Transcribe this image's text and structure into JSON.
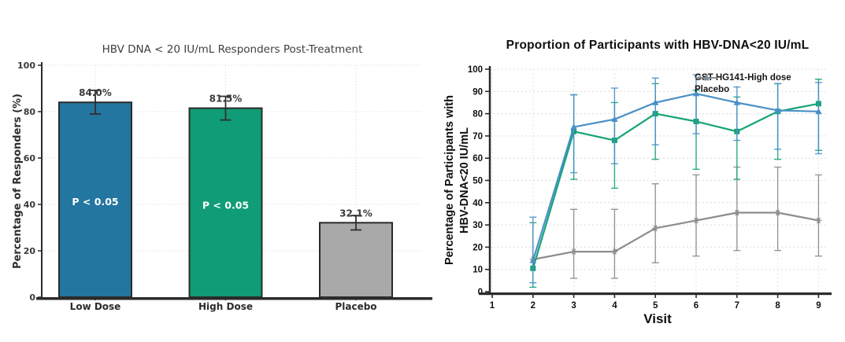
{
  "page": {
    "background": "#ffffff"
  },
  "chart_data": [
    {
      "type": "bar",
      "title": "HBV DNA < 20 IU/mL Responders Post-Treatment",
      "ylabel": "Percentage of Responders (%)",
      "categories": [
        "Low Dose",
        "High Dose",
        "Placebo"
      ],
      "values": [
        84.0,
        81.5,
        32.1
      ],
      "value_labels": [
        "84.0%",
        "81.5%",
        "32.1%"
      ],
      "error_low": [
        79.0,
        76.4,
        29.0
      ],
      "error_high": [
        89.2,
        86.6,
        35.2
      ],
      "annotations": [
        {
          "text": "P < 0.05",
          "category_index": 0,
          "y": 41
        },
        {
          "text": "P < 0.05",
          "category_index": 1,
          "y": 39.5
        }
      ],
      "ylim": [
        0,
        100
      ],
      "yticks": [
        0,
        20,
        40,
        60,
        80,
        100
      ],
      "grid": true,
      "colors": {
        "bars": [
          "#2376a0",
          "#109c76",
          "#a9a9a9"
        ],
        "bar_edge": "#2b2b2b",
        "error": "#2f2f2f",
        "grid": "#e0e0e0",
        "axis": "#2b2b2b"
      }
    },
    {
      "type": "line",
      "title": "Proportion of Participants with HBV-DNA<20 IU/mL",
      "xlabel": "Visit",
      "ylabel_lines": [
        "Percentage of Participants with",
        "HBV-DNA<20 IU/mL"
      ],
      "x": [
        2,
        3,
        4,
        5,
        6,
        7,
        8,
        9
      ],
      "xticks": [
        1,
        2,
        3,
        4,
        5,
        6,
        7,
        8,
        9
      ],
      "ylim": [
        0,
        100
      ],
      "yticks": [
        0,
        10,
        20,
        30,
        40,
        50,
        60,
        70,
        80,
        90,
        100
      ],
      "grid": true,
      "legend": [
        {
          "label": "GST-HG141-High dose",
          "color": "#4a90c8",
          "marker": "triangle"
        },
        {
          "label": "Placebo",
          "color": "#8c8c8c",
          "marker": "star"
        }
      ],
      "series": [
        {
          "name": "Placebo",
          "color": "#8c8c8c",
          "marker": "star",
          "values": [
            14.5,
            18,
            18,
            28.5,
            32,
            35.5,
            35.5,
            32
          ],
          "err_low": [
            null,
            6,
            6,
            13,
            16,
            18.5,
            18.5,
            16
          ],
          "err_high": [
            null,
            37,
            37,
            48.5,
            52.5,
            56,
            56,
            52.5
          ]
        },
        {
          "name": "",
          "color": "#17a377",
          "marker": "square",
          "values": [
            10.5,
            72,
            68,
            80,
            76.5,
            72,
            81,
            84.5
          ],
          "err_low": [
            2,
            50.5,
            46.5,
            59.5,
            55,
            50.5,
            59.5,
            63.5
          ],
          "err_high": [
            31,
            88.5,
            85,
            93.5,
            90.5,
            87.5,
            93.5,
            95.5
          ]
        },
        {
          "name": "GST-HG141-High dose",
          "color": "#4a90c8",
          "marker": "triangle",
          "values": [
            14,
            74,
            77.5,
            85,
            89,
            85,
            81.5,
            81
          ],
          "err_low": [
            4,
            53.5,
            57.5,
            66,
            71,
            68,
            64,
            62
          ],
          "err_high": [
            33.5,
            88.5,
            91.5,
            96,
            97.5,
            92,
            93.5,
            94
          ]
        }
      ],
      "colors": {
        "grid": "#dcdcdc",
        "grid_v": "#e3e3e3",
        "axis": "#2b2b2b"
      }
    }
  ]
}
